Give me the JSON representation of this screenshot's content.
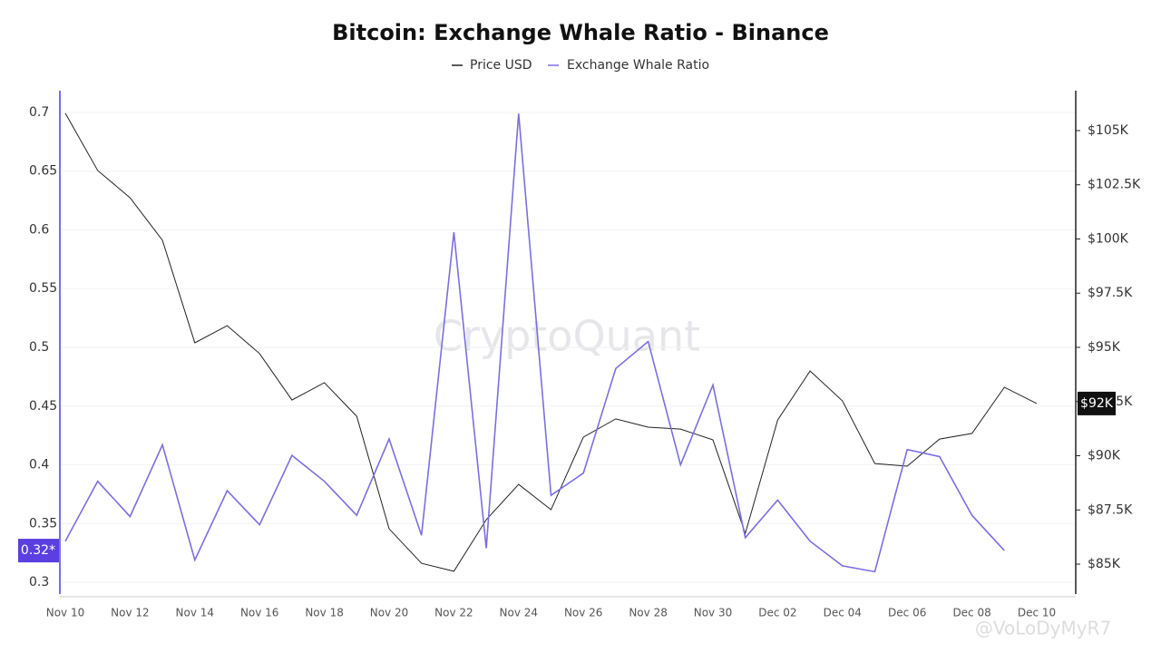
{
  "chart_data": {
    "type": "line",
    "title": "Bitcoin: Exchange Whale Ratio - Binance",
    "watermark": "CryptoQuant",
    "credit": "@VoLoDyMyR7",
    "categories": [
      "Nov 10",
      null,
      "Nov 12",
      null,
      "Nov 14",
      null,
      "Nov 16",
      null,
      "Nov 18",
      null,
      "Nov 20",
      null,
      "Nov 22",
      null,
      "Nov 24",
      null,
      "Nov 26",
      null,
      "Nov 28",
      null,
      "Nov 30",
      null,
      "Dec 02",
      null,
      "Dec 04",
      null,
      "Dec 06",
      null,
      "Dec 08",
      null,
      "Dec 10"
    ],
    "series": [
      {
        "name": "Price USD",
        "color": "#222222",
        "axis": "y2",
        "current_label": "$92K",
        "values": [
          105800,
          103160,
          101900,
          99940,
          95210,
          96000,
          94710,
          92570,
          93370,
          91820,
          86630,
          85040,
          84670,
          87050,
          88680,
          87510,
          90860,
          91700,
          91320,
          91230,
          90730,
          86420,
          91650,
          93910,
          92530,
          89640,
          89520,
          90770,
          91030,
          93160,
          92410
        ]
      },
      {
        "name": "Exchange Whale Ratio",
        "color": "#7b6fe0",
        "current_label": "0.32*",
        "values": [
          0.335,
          0.386,
          0.356,
          0.417,
          0.319,
          0.378,
          0.349,
          0.408,
          0.386,
          0.357,
          0.422,
          0.34,
          0.598,
          0.329,
          0.699,
          0.374,
          0.393,
          0.482,
          0.505,
          0.4,
          0.468,
          0.338,
          0.37,
          0.335,
          0.314,
          0.309,
          0.413,
          0.407,
          0.357,
          0.327,
          null
        ]
      }
    ],
    "ylim": [
      0.29,
      0.7185
    ],
    "yticks": [
      0.3,
      0.35,
      0.4,
      0.45,
      0.5,
      0.55,
      0.6,
      0.65,
      0.7
    ],
    "y2lim": [
      83620,
      106840
    ],
    "y2ticks": [
      {
        "value": 85000,
        "label": "$85K"
      },
      {
        "value": 87500,
        "label": "$87.5K"
      },
      {
        "value": 90000,
        "label": "$90K"
      },
      {
        "value": 92500,
        "label": "$92.5K"
      },
      {
        "value": 95000,
        "label": "$95K"
      },
      {
        "value": 97500,
        "label": "$97.5K"
      },
      {
        "value": 100000,
        "label": "$100K"
      },
      {
        "value": 102500,
        "label": "$102.5K"
      },
      {
        "value": 105000,
        "label": "$105K"
      }
    ],
    "grid": true
  }
}
